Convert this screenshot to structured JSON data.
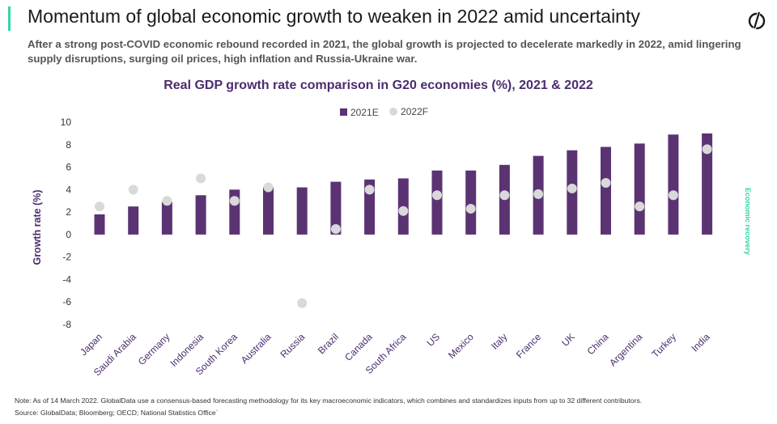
{
  "header": {
    "title": "Momentum of global economic growth to weaken in 2022 amid uncertainty",
    "subtitle": "After a strong post-COVID economic rebound recorded in 2021, the global growth is projected to decelerate markedly in 2022, amid lingering supply disruptions, surging oil prices, high inflation and Russia-Ukraine war.",
    "logo_icon": "globaldata-logo-icon",
    "accent_color": "#2fd6a8"
  },
  "side_label": "Economic recovery",
  "footer": {
    "note": "Note: As of 14 March 2022. GlobalData use a consensus-based forecasting methodology for its key macroeconomic indicators, which combines and standardizes inputs from up to 32 different contributors.",
    "source": "Source: GlobalData; Bloomberg; OECD; National Statistics Office`"
  },
  "chart_data": {
    "type": "bar",
    "title": "Real GDP growth rate comparison in G20 economies (%), 2021 & 2022",
    "xlabel": "",
    "ylabel": "Growth rate (%)",
    "ylim": [
      -8,
      10
    ],
    "yticks": [
      10,
      8,
      6,
      4,
      2,
      0,
      -2,
      -4,
      -6,
      -8
    ],
    "grid": false,
    "legend_position": "top-center",
    "categories": [
      "Japan",
      "Saudi Arabia",
      "Germany",
      "Indonesia",
      "South Korea",
      "Australia",
      "Russia",
      "Brazil",
      "Canada",
      "South Africa",
      "US",
      "Mexico",
      "Italy",
      "France",
      "UK",
      "China",
      "Argentina",
      "Turkey",
      "India"
    ],
    "series": [
      {
        "name": "2021E",
        "mark": "bar",
        "color": "#5b3373",
        "values": [
          1.8,
          2.5,
          2.9,
          3.5,
          4.0,
          4.2,
          4.2,
          4.7,
          4.9,
          5.0,
          5.7,
          5.7,
          6.2,
          7.0,
          7.5,
          7.8,
          8.1,
          8.9,
          9.0
        ]
      },
      {
        "name": "2022F",
        "mark": "dot",
        "color": "#d9d9d9",
        "values": [
          2.5,
          4.0,
          3.0,
          5.0,
          3.0,
          4.2,
          -6.1,
          0.5,
          4.0,
          2.1,
          3.5,
          2.3,
          3.5,
          3.6,
          4.1,
          4.6,
          2.5,
          3.5,
          7.6
        ]
      }
    ]
  }
}
